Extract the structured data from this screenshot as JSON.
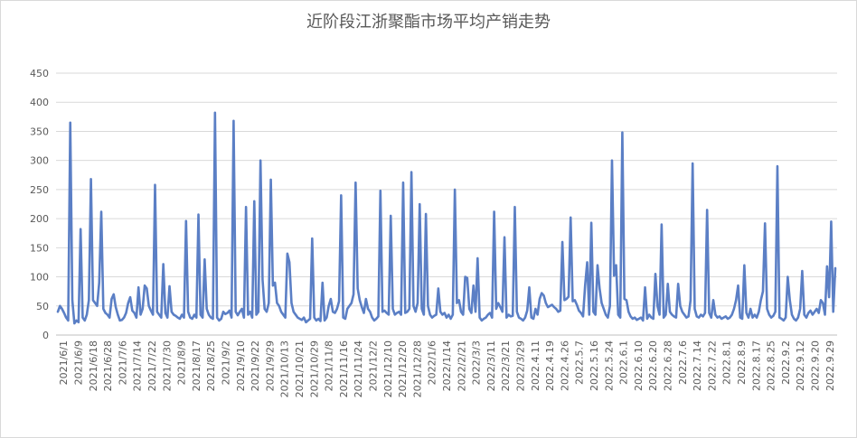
{
  "chart_data": {
    "type": "line",
    "title": "近阶段江浙聚酯市场平均产销走势",
    "xlabel": "",
    "ylabel": "",
    "ylim": [
      0,
      450
    ],
    "yticks": [
      0,
      50,
      100,
      150,
      200,
      250,
      300,
      350,
      400,
      450
    ],
    "grid": true,
    "legend": "none",
    "x_tick_labels": [
      "2021/6/1",
      "2021/6/9",
      "2021/6/18",
      "2021/6/28",
      "2021/7/6",
      "2021/7/14",
      "2021/7/22",
      "2021/7/30",
      "2021/8/9",
      "2021/8/17",
      "2021/8/25",
      "2021/9/2",
      "2021/9/10",
      "2021/9/22",
      "2021/9/29",
      "2021/10/13",
      "2021/10/21",
      "2021/10/29",
      "2021/11/8",
      "2021/11/16",
      "2021/11/24",
      "2021/12/2",
      "2021/12/10",
      "2021/12/20",
      "2021/12/28",
      "2022/1/6",
      "2022/1/14",
      "2022/2/21",
      "2022/3/3",
      "2022/3/11",
      "2022/3/21",
      "2022/3/29",
      "2022.4.11",
      "2022.4.19",
      "2022.4.26",
      "2022.5.7",
      "2022.5.16",
      "2022.5.24",
      "2022.6.1",
      "2022.6.10",
      "2022.6.20",
      "2022.6.28",
      "2022.7.6",
      "2022.7.14",
      "2022.7.22",
      "2022.8.1",
      "2022.8.9",
      "2022.8.17",
      "2022.8.25",
      "2022.9.2",
      "2022.9.12",
      "2022.9.20",
      "2022.9.29"
    ],
    "series": [
      {
        "name": "",
        "color": "#5b7fc5",
        "values": [
          40,
          50,
          45,
          38,
          30,
          25,
          365,
          60,
          20,
          25,
          22,
          182,
          30,
          25,
          35,
          60,
          268,
          60,
          55,
          50,
          90,
          212,
          45,
          38,
          35,
          30,
          62,
          70,
          48,
          35,
          25,
          26,
          30,
          38,
          55,
          65,
          42,
          38,
          30,
          82,
          35,
          45,
          85,
          80,
          50,
          42,
          35,
          258,
          40,
          35,
          30,
          122,
          38,
          30,
          84,
          40,
          35,
          33,
          30,
          28,
          35,
          30,
          196,
          40,
          30,
          28,
          35,
          30,
          207,
          35,
          30,
          130,
          45,
          35,
          30,
          28,
          382,
          30,
          25,
          28,
          40,
          36,
          38,
          42,
          30,
          368,
          40,
          34,
          40,
          45,
          30,
          220,
          35,
          40,
          30,
          230,
          35,
          40,
          300,
          95,
          45,
          40,
          55,
          267,
          85,
          90,
          55,
          50,
          40,
          35,
          30,
          140,
          125,
          55,
          40,
          35,
          30,
          28,
          26,
          30,
          22,
          25,
          28,
          166,
          30,
          25,
          28,
          24,
          90,
          25,
          30,
          50,
          62,
          40,
          38,
          45,
          58,
          240,
          30,
          28,
          45,
          50,
          55,
          70,
          262,
          80,
          60,
          48,
          38,
          62,
          45,
          40,
          30,
          25,
          28,
          32,
          248,
          40,
          42,
          38,
          35,
          205,
          45,
          35,
          38,
          40,
          35,
          262,
          38,
          40,
          45,
          280,
          50,
          40,
          55,
          225,
          45,
          35,
          208,
          50,
          35,
          30,
          33,
          35,
          80,
          40,
          35,
          38,
          30,
          35,
          28,
          35,
          250,
          55,
          60,
          40,
          35,
          100,
          98,
          45,
          38,
          85,
          40,
          132,
          30,
          25,
          28,
          30,
          35,
          38,
          30,
          212,
          45,
          55,
          48,
          40,
          168,
          30,
          35,
          32,
          33,
          220,
          40,
          30,
          28,
          25,
          30,
          42,
          82,
          30,
          28,
          45,
          35,
          62,
          72,
          68,
          55,
          48,
          50,
          52,
          48,
          45,
          40,
          42,
          160,
          60,
          62,
          66,
          202,
          58,
          60,
          52,
          42,
          38,
          32,
          85,
          125,
          35,
          193,
          40,
          35,
          120,
          80,
          55,
          45,
          35,
          30,
          50,
          300,
          102,
          120,
          35,
          30,
          348,
          62,
          60,
          40,
          32,
          28,
          30,
          26,
          28,
          30,
          25,
          82,
          28,
          35,
          30,
          28,
          105,
          50,
          35,
          190,
          30,
          35,
          88,
          40,
          35,
          32,
          30,
          88,
          50,
          40,
          35,
          30,
          32,
          60,
          295,
          45,
          32,
          30,
          35,
          32,
          38,
          215,
          38,
          30,
          60,
          35,
          30,
          32,
          28,
          30,
          32,
          28,
          30,
          35,
          45,
          60,
          85,
          30,
          28,
          120,
          38,
          30,
          45,
          30,
          35,
          30,
          40,
          60,
          75,
          192,
          45,
          35,
          30,
          33,
          40,
          290,
          30,
          28,
          25,
          30,
          100,
          60,
          35,
          28,
          25,
          30,
          45,
          110,
          35,
          30,
          38,
          42,
          35,
          40,
          45,
          38,
          60,
          55,
          35,
          118,
          65,
          195,
          40,
          115
        ]
      }
    ]
  }
}
